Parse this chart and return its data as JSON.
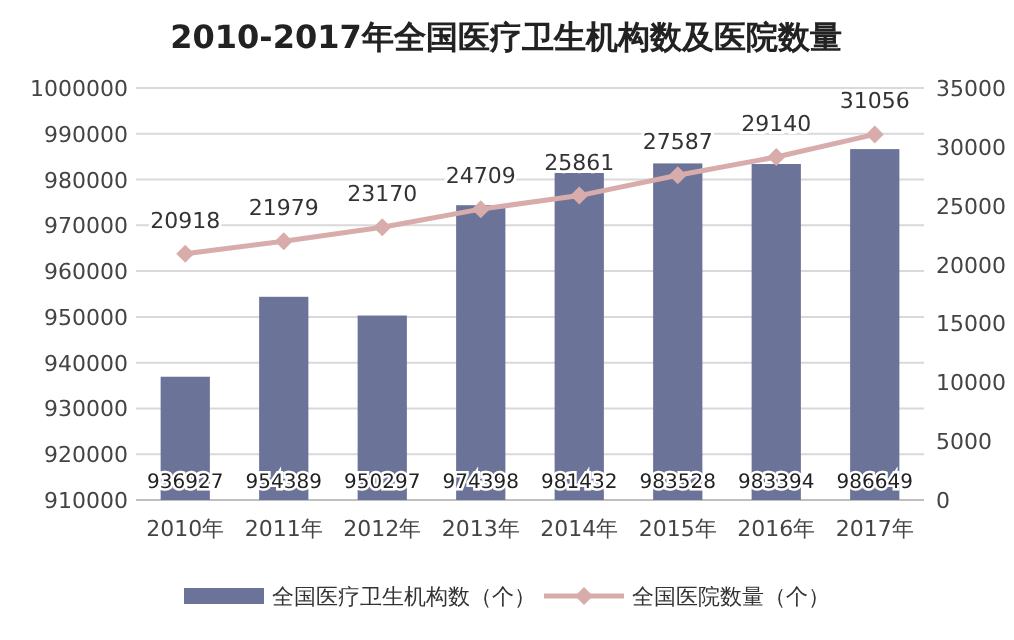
{
  "chart_data": {
    "type": "bar",
    "title": "2010-2017年全国医疗卫生机构数及医院数量",
    "categories": [
      "2010年",
      "2011年",
      "2012年",
      "2013年",
      "2014年",
      "2015年",
      "2016年",
      "2017年"
    ],
    "series": [
      {
        "name": "全国医疗卫生机构数（个）",
        "type": "bar",
        "color": "#6b7399",
        "values": [
          936927,
          954389,
          950297,
          974398,
          981432,
          983528,
          983394,
          986649
        ]
      },
      {
        "name": "全国医院数量（个）",
        "type": "line",
        "axis": "y2",
        "marker": "diamond",
        "color": "#d9acac",
        "values": [
          20918,
          21979,
          23170,
          24709,
          25861,
          27587,
          29140,
          31056
        ]
      }
    ],
    "ylim": [
      910000,
      1000000
    ],
    "yticks": [
      910000,
      920000,
      930000,
      940000,
      950000,
      960000,
      970000,
      980000,
      990000,
      1000000
    ],
    "y2lim": [
      0,
      35000
    ],
    "y2ticks": [
      0,
      5000,
      10000,
      15000,
      20000,
      25000,
      30000,
      35000
    ],
    "grid": "y",
    "legend": "bottom",
    "data_labels": true
  }
}
